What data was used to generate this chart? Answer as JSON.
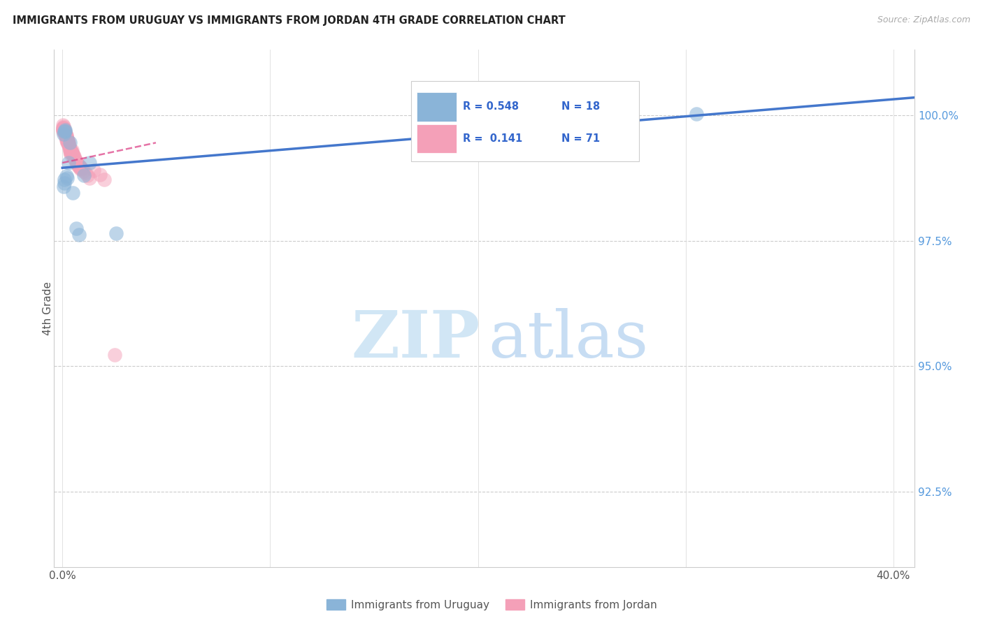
{
  "title": "IMMIGRANTS FROM URUGUAY VS IMMIGRANTS FROM JORDAN 4TH GRADE CORRELATION CHART",
  "source": "Source: ZipAtlas.com",
  "ylabel": "4th Grade",
  "ylabel_ticks": [
    "92.5%",
    "95.0%",
    "97.5%",
    "100.0%"
  ],
  "ylabel_values": [
    92.5,
    95.0,
    97.5,
    100.0
  ],
  "ymin": 91.0,
  "ymax": 101.3,
  "xmin": -0.4,
  "xmax": 41.0,
  "xlim_label_left": "0.0%",
  "xlim_label_right": "40.0%",
  "legend_blue_r": "R = 0.548",
  "legend_blue_n": "N = 18",
  "legend_pink_r": "R =  0.141",
  "legend_pink_n": "N = 71",
  "legend_blue_label": "Immigrants from Uruguay",
  "legend_pink_label": "Immigrants from Jordan",
  "blue_color": "#8ab4d8",
  "pink_color": "#f4a0b8",
  "trendline_blue_color": "#4477cc",
  "trendline_pink_color": "#dd4488",
  "blue_x": [
    0.05,
    0.08,
    0.1,
    0.12,
    0.14,
    0.18,
    0.22,
    0.28,
    0.35,
    0.5,
    0.65,
    0.8,
    1.05,
    1.3,
    2.6,
    0.06,
    0.09,
    30.5
  ],
  "blue_y": [
    99.62,
    98.72,
    99.68,
    99.68,
    99.7,
    98.78,
    98.75,
    99.05,
    99.45,
    98.45,
    97.75,
    97.62,
    98.8,
    99.05,
    97.65,
    98.58,
    98.65,
    100.02
  ],
  "pink_x": [
    0.02,
    0.03,
    0.04,
    0.05,
    0.06,
    0.07,
    0.08,
    0.09,
    0.1,
    0.11,
    0.12,
    0.13,
    0.14,
    0.15,
    0.16,
    0.17,
    0.18,
    0.19,
    0.2,
    0.21,
    0.22,
    0.23,
    0.24,
    0.25,
    0.26,
    0.27,
    0.28,
    0.29,
    0.3,
    0.32,
    0.33,
    0.35,
    0.37,
    0.39,
    0.41,
    0.43,
    0.45,
    0.48,
    0.5,
    0.55,
    0.58,
    0.6,
    0.65,
    0.7,
    0.75,
    0.8,
    0.85,
    0.9,
    0.95,
    1.0,
    1.1,
    1.2,
    1.3,
    1.5,
    1.8,
    2.0,
    0.01,
    0.025,
    0.015,
    0.035,
    2.5,
    0.38,
    0.42,
    0.47,
    0.52,
    0.62,
    0.68,
    0.72,
    0.78,
    0.83,
    0.88
  ],
  "pink_y": [
    99.75,
    99.68,
    99.72,
    99.78,
    99.75,
    99.72,
    99.68,
    99.65,
    99.72,
    99.68,
    99.66,
    99.62,
    99.65,
    99.62,
    99.6,
    99.55,
    99.6,
    99.58,
    99.55,
    99.5,
    99.52,
    99.48,
    99.46,
    99.5,
    99.48,
    99.45,
    99.42,
    99.45,
    99.4,
    99.38,
    99.35,
    99.32,
    99.28,
    99.25,
    99.3,
    99.28,
    99.3,
    99.25,
    99.22,
    99.18,
    99.15,
    99.12,
    99.08,
    99.05,
    99.0,
    99.0,
    98.98,
    98.95,
    98.92,
    98.88,
    98.85,
    98.8,
    98.75,
    98.9,
    98.82,
    98.72,
    99.8,
    99.72,
    99.75,
    99.7,
    95.22,
    99.22,
    99.28,
    99.25,
    99.2,
    99.1,
    99.05,
    99.02,
    98.98,
    98.95,
    98.92
  ],
  "trendline_blue_x0": 0.0,
  "trendline_blue_y0": 98.95,
  "trendline_blue_x1": 41.0,
  "trendline_blue_y1": 100.35,
  "trendline_pink_x0": 0.0,
  "trendline_pink_y0": 99.05,
  "trendline_pink_x1": 4.5,
  "trendline_pink_y1": 99.45
}
